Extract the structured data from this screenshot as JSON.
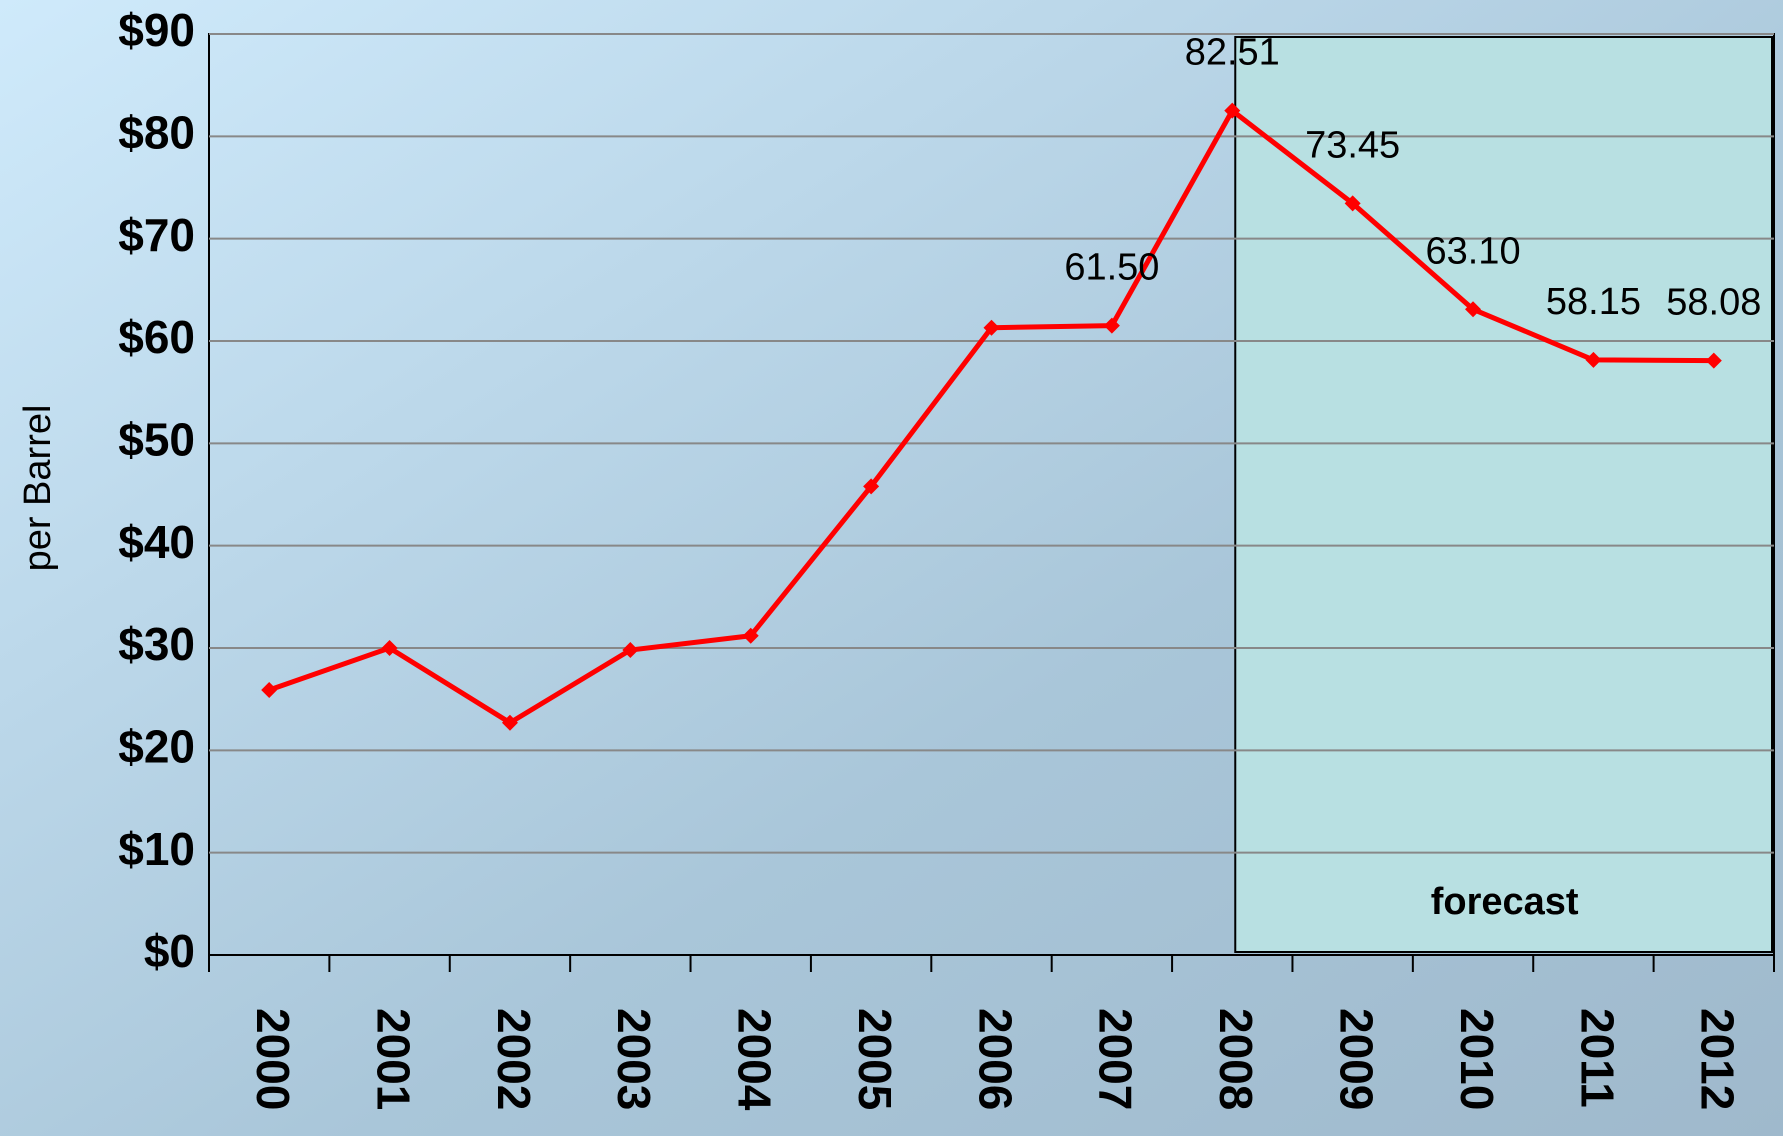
{
  "chart_data": {
    "type": "line",
    "y_label": "per Barrel",
    "annotation": "forecast",
    "categories": [
      "2000",
      "2001",
      "2002",
      "2003",
      "2004",
      "2005",
      "2006",
      "2007",
      "2008",
      "2009",
      "2010",
      "2011",
      "2012"
    ],
    "series": [
      {
        "color": "#ff0000",
        "values": [
          25.9,
          30.0,
          22.7,
          29.8,
          31.2,
          45.8,
          61.3,
          61.5,
          82.51,
          73.45,
          63.1,
          58.15,
          58.08
        ],
        "value_labels": [
          null,
          null,
          null,
          null,
          null,
          null,
          null,
          "61.50",
          "82.51",
          "73.45",
          "63.10",
          "58.15",
          "58.08"
        ]
      }
    ],
    "ylim": [
      0,
      90
    ],
    "yticks": [
      {
        "value": 0,
        "label": "$0"
      },
      {
        "value": 10,
        "label": "$10"
      },
      {
        "value": 20,
        "label": "$20"
      },
      {
        "value": 30,
        "label": "$30"
      },
      {
        "value": 40,
        "label": "$40"
      },
      {
        "value": 50,
        "label": "$50"
      },
      {
        "value": 60,
        "label": "$60"
      },
      {
        "value": 70,
        "label": "$70"
      },
      {
        "value": 80,
        "label": "$80"
      },
      {
        "value": 90,
        "label": "$90"
      }
    ],
    "grid": true
  }
}
